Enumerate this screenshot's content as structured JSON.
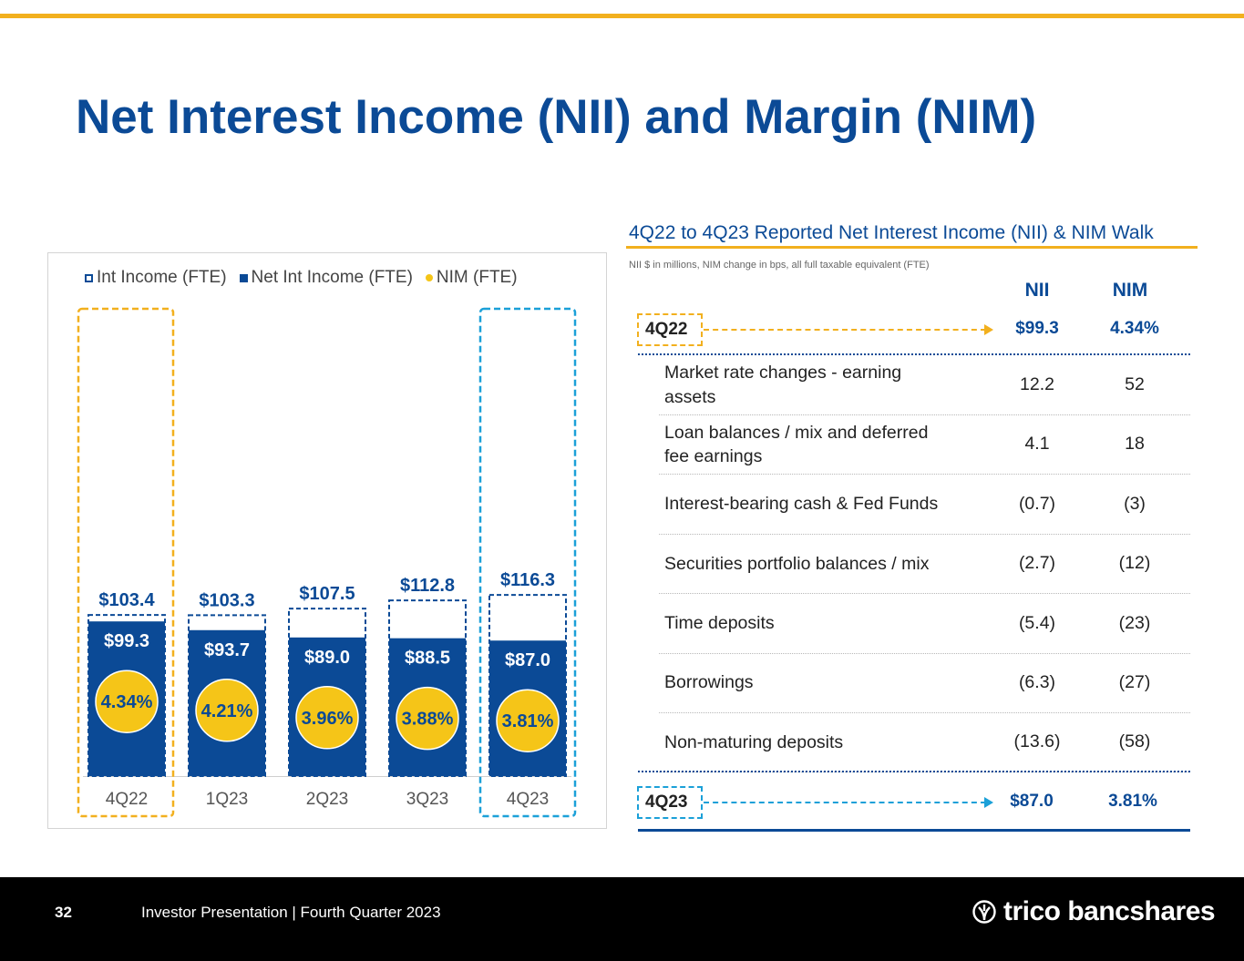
{
  "title": "Net Interest Income (NII) and Margin (NIM)",
  "colors": {
    "navy": "#0b4a96",
    "gold": "#f2b01e",
    "nim_circle": "#f5c518",
    "sky": "#1ba0d8"
  },
  "chart_data": {
    "type": "bar",
    "legend": {
      "int_income": "Int Income (FTE)",
      "net_int_income": "Net Int Income (FTE)",
      "nim": "NIM (FTE)"
    },
    "categories": [
      "4Q22",
      "1Q23",
      "2Q23",
      "3Q23",
      "4Q23"
    ],
    "series": [
      {
        "name": "Int Income (FTE)",
        "values": [
          103.4,
          103.3,
          107.5,
          112.8,
          116.3
        ],
        "labels": [
          "$103.4",
          "$103.3",
          "$107.5",
          "$112.8",
          "$116.3"
        ]
      },
      {
        "name": "Net Int Income (FTE)",
        "values": [
          99.3,
          93.7,
          89.0,
          88.5,
          87.0
        ],
        "labels": [
          "$99.3",
          "$93.7",
          "$89.0",
          "$88.5",
          "$87.0"
        ]
      },
      {
        "name": "NIM (FTE)",
        "values": [
          4.34,
          4.21,
          3.96,
          3.88,
          3.81
        ],
        "labels": [
          "4.34%",
          "4.21%",
          "3.96%",
          "3.88%",
          "3.81%"
        ]
      }
    ],
    "ylim": [
      0,
      125
    ],
    "highlight": {
      "first": "gold",
      "last": "sky"
    }
  },
  "walk": {
    "title": "4Q22 to 4Q23 Reported Net Interest Income (NII) & NIM Walk",
    "subtitle": "NII $ in millions, NIM change in bps, all full taxable equivalent (FTE)",
    "col_nii": "NII",
    "col_nim": "NIM",
    "start": {
      "label": "4Q22",
      "nii": "$99.3",
      "nim": "4.34%"
    },
    "rows": [
      {
        "label": "Market rate changes - earning assets",
        "nii": "12.2",
        "nim": "52"
      },
      {
        "label": "Loan balances / mix and deferred fee earnings",
        "nii": "4.1",
        "nim": "18"
      },
      {
        "label": "Interest-bearing cash & Fed Funds",
        "nii": "(0.7)",
        "nim": "(3)"
      },
      {
        "label": "Securities portfolio balances / mix",
        "nii": "(2.7)",
        "nim": "(12)"
      },
      {
        "label": "Time deposits",
        "nii": "(5.4)",
        "nim": "(23)"
      },
      {
        "label": "Borrowings",
        "nii": "(6.3)",
        "nim": "(27)"
      },
      {
        "label": "Non-maturing deposits",
        "nii": "(13.6)",
        "nim": "(58)"
      }
    ],
    "end": {
      "label": "4Q23",
      "nii": "$87.0",
      "nim": "3.81%"
    }
  },
  "footer": {
    "page": "32",
    "text": "Investor Presentation | Fourth Quarter 2023",
    "logo": "trico bancshares",
    "logo_icon": "trico-leaf-icon"
  }
}
